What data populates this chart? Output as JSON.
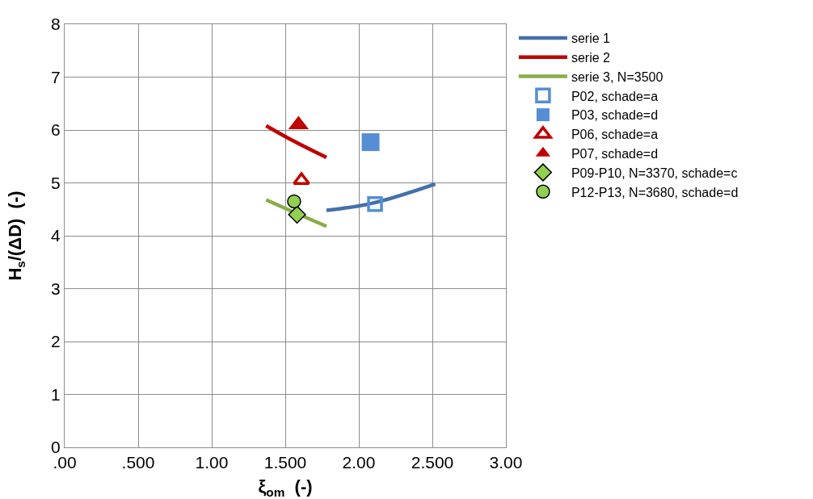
{
  "chart_data": {
    "type": "scatter",
    "xlabel": "ξ$_{om}$  (-)",
    "ylabel": "H$_{s}$/(ΔD)  (-)",
    "xlim": [
      0,
      3
    ],
    "xticks": [
      {
        "value": 0,
        "label": ".00"
      },
      {
        "value": 0.5,
        "label": ".500"
      },
      {
        "value": 1,
        "label": "1.00"
      },
      {
        "value": 1.5,
        "label": "1.500"
      },
      {
        "value": 2,
        "label": "2.00"
      },
      {
        "value": 2.5,
        "label": "2.500"
      },
      {
        "value": 3,
        "label": "3.00"
      }
    ],
    "ylim": [
      0,
      8
    ],
    "yticks": [
      0,
      1,
      2,
      3,
      4,
      5,
      6,
      7,
      8
    ],
    "grid": true,
    "legend": "right",
    "series": [
      {
        "name": "serie 1",
        "type": "line",
        "marker": "none",
        "color": "#4470aa",
        "x": [
          1.78,
          2.1,
          2.52
        ],
        "values": [
          4.48,
          4.62,
          4.98
        ]
      },
      {
        "name": "serie 2",
        "type": "line",
        "marker": "none",
        "color": "#c00000",
        "x": [
          1.37,
          1.55,
          1.78
        ],
        "values": [
          6.08,
          5.8,
          5.48
        ]
      },
      {
        "name": "serie 3, N=3500",
        "type": "line",
        "marker": "none",
        "color": "#8aac4a",
        "x": [
          1.37,
          1.58,
          1.78
        ],
        "values": [
          4.68,
          4.42,
          4.18
        ]
      },
      {
        "name": "P02, schade=a",
        "type": "scatter",
        "marker": "square-open",
        "color": "#558ed5",
        "x": [
          2.11
        ],
        "values": [
          4.6
        ]
      },
      {
        "name": "P03, schade=d",
        "type": "scatter",
        "marker": "square",
        "color": "#558ed5",
        "x": [
          2.08
        ],
        "values": [
          5.77
        ]
      },
      {
        "name": "P06, schade=a",
        "type": "scatter",
        "marker": "triangle-open",
        "color": "#c00000",
        "x": [
          1.61
        ],
        "values": [
          5.05
        ]
      },
      {
        "name": "P07, schade=d",
        "type": "scatter",
        "marker": "triangle",
        "color": "#c00000",
        "x": [
          1.59
        ],
        "values": [
          6.1
        ]
      },
      {
        "name": "P09-P10, N=3370, schade=c",
        "type": "scatter",
        "marker": "diamond",
        "color": "#92d050",
        "x": [
          1.58
        ],
        "values": [
          4.4
        ]
      },
      {
        "name": "P12-P13, N=3680, schade=d",
        "type": "scatter",
        "marker": "circle",
        "color": "#92d050",
        "x": [
          1.56
        ],
        "values": [
          4.65
        ]
      }
    ]
  }
}
